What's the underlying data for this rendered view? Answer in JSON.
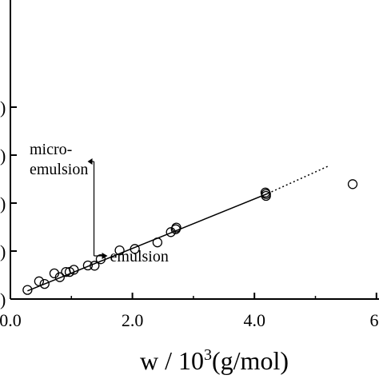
{
  "chart_data": {
    "type": "scatter",
    "xlabel": {
      "base": "w / 10",
      "sup": "3",
      "suffix": "(g/mol)"
    },
    "ylabel": "",
    "xlim": [
      0.0,
      6.0
    ],
    "ylim": [
      0,
      80
    ],
    "x_ticks": [
      {
        "value": 0.0,
        "label": "0.0"
      },
      {
        "value": 2.0,
        "label": "2.0"
      },
      {
        "value": 4.0,
        "label": "4.0"
      },
      {
        "value": 6.0,
        "label": "6."
      }
    ],
    "y_ticks": [
      {
        "value": 0,
        "label": ")"
      },
      {
        "value": 20,
        "label": ")"
      },
      {
        "value": 40,
        "label": ")"
      },
      {
        "value": 60,
        "label": ")"
      },
      {
        "value": 80,
        "label": ")"
      }
    ],
    "points": [
      {
        "x": 0.28,
        "y": 3.8
      },
      {
        "x": 0.47,
        "y": 7.4
      },
      {
        "x": 0.56,
        "y": 6.3
      },
      {
        "x": 0.72,
        "y": 10.7
      },
      {
        "x": 0.81,
        "y": 9.1
      },
      {
        "x": 0.91,
        "y": 11.3
      },
      {
        "x": 0.97,
        "y": 11.3
      },
      {
        "x": 1.04,
        "y": 12.2
      },
      {
        "x": 1.27,
        "y": 14.0
      },
      {
        "x": 1.38,
        "y": 13.9
      },
      {
        "x": 1.48,
        "y": 16.6
      },
      {
        "x": 1.79,
        "y": 20.3
      },
      {
        "x": 2.04,
        "y": 20.9
      },
      {
        "x": 2.41,
        "y": 23.6
      },
      {
        "x": 2.63,
        "y": 27.9
      },
      {
        "x": 2.71,
        "y": 29.1
      },
      {
        "x": 2.72,
        "y": 29.8
      },
      {
        "x": 4.18,
        "y": 44.4
      },
      {
        "x": 4.19,
        "y": 43.0
      },
      {
        "x": 4.19,
        "y": 43.8
      },
      {
        "x": 5.61,
        "y": 47.9
      }
    ],
    "fit_line_solid": [
      [
        0.28,
        3.4
      ],
      [
        4.22,
        44.0
      ]
    ],
    "fit_line_dotted": [
      [
        4.22,
        44.0
      ],
      [
        5.2,
        55.3
      ]
    ],
    "annotations": [
      {
        "text": "micro-"
      },
      {
        "text": "emulsion"
      },
      {
        "text": "emulsion"
      }
    ],
    "boundary_x": 1.37,
    "grid": false,
    "legend": "none"
  }
}
